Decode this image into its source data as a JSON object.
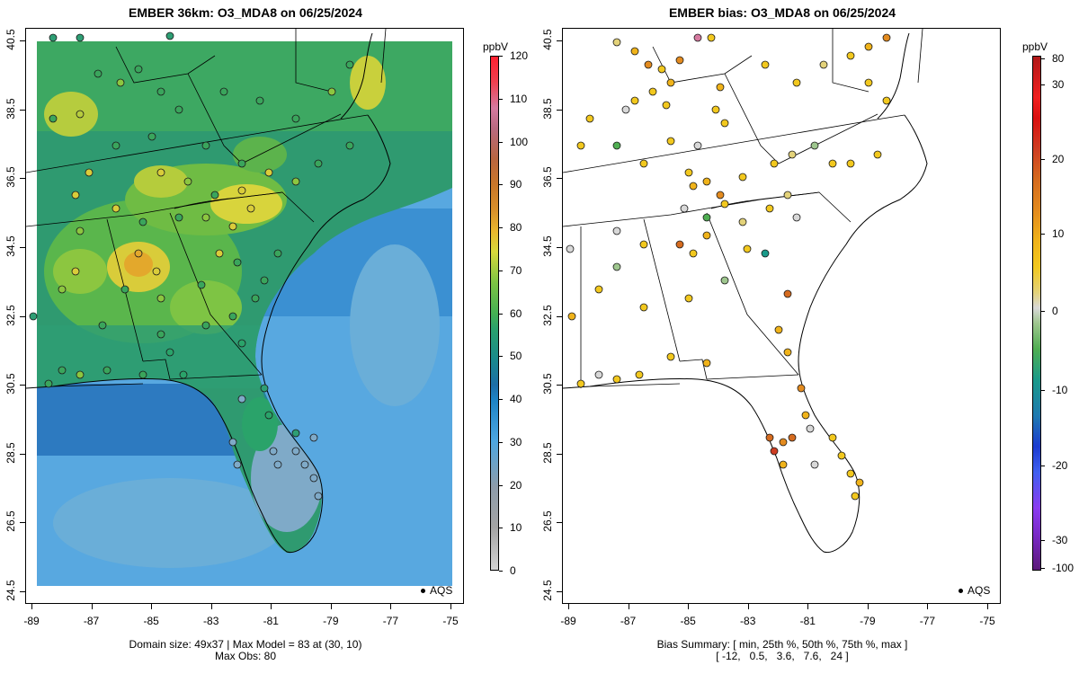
{
  "left_panel": {
    "title": "EMBER 36km: O3_MDA8 on 06/25/2024",
    "colorbar_unit": "ppbV",
    "colorbar_ticks": [
      "0",
      "10",
      "20",
      "30",
      "40",
      "50",
      "60",
      "70",
      "80",
      "90",
      "100",
      "110",
      "120"
    ],
    "footer_line1": "Domain size: 49x37 | Max Model = 83 at (30, 10)",
    "footer_line2": "Max Obs: 80",
    "legend_label": "AQS"
  },
  "right_panel": {
    "title": "EMBER bias: O3_MDA8 on 06/25/2024",
    "colorbar_unit": "ppbV",
    "colorbar_ticks": [
      "-100",
      "-30",
      "-20",
      "-10",
      "0",
      "10",
      "20",
      "30",
      "80"
    ],
    "footer_line1": "Bias Summary: [ min, 25th %, 50th %, 75th %, max ]",
    "footer_line2": "[ -12,   0.5,   3.6,   7.6,   24 ]",
    "legend_label": "AQS"
  },
  "axes": {
    "x_ticks": [
      "-89",
      "-87",
      "-85",
      "-83",
      "-81",
      "-79",
      "-77",
      "-75"
    ],
    "y_ticks": [
      "24.5",
      "26.5",
      "28.5",
      "30.5",
      "32.5",
      "34.5",
      "36.5",
      "38.5",
      "40.5"
    ]
  },
  "colors": {
    "ocean": "#58a8e0",
    "land_default": "#3aa56a",
    "frame": "#000000"
  }
}
